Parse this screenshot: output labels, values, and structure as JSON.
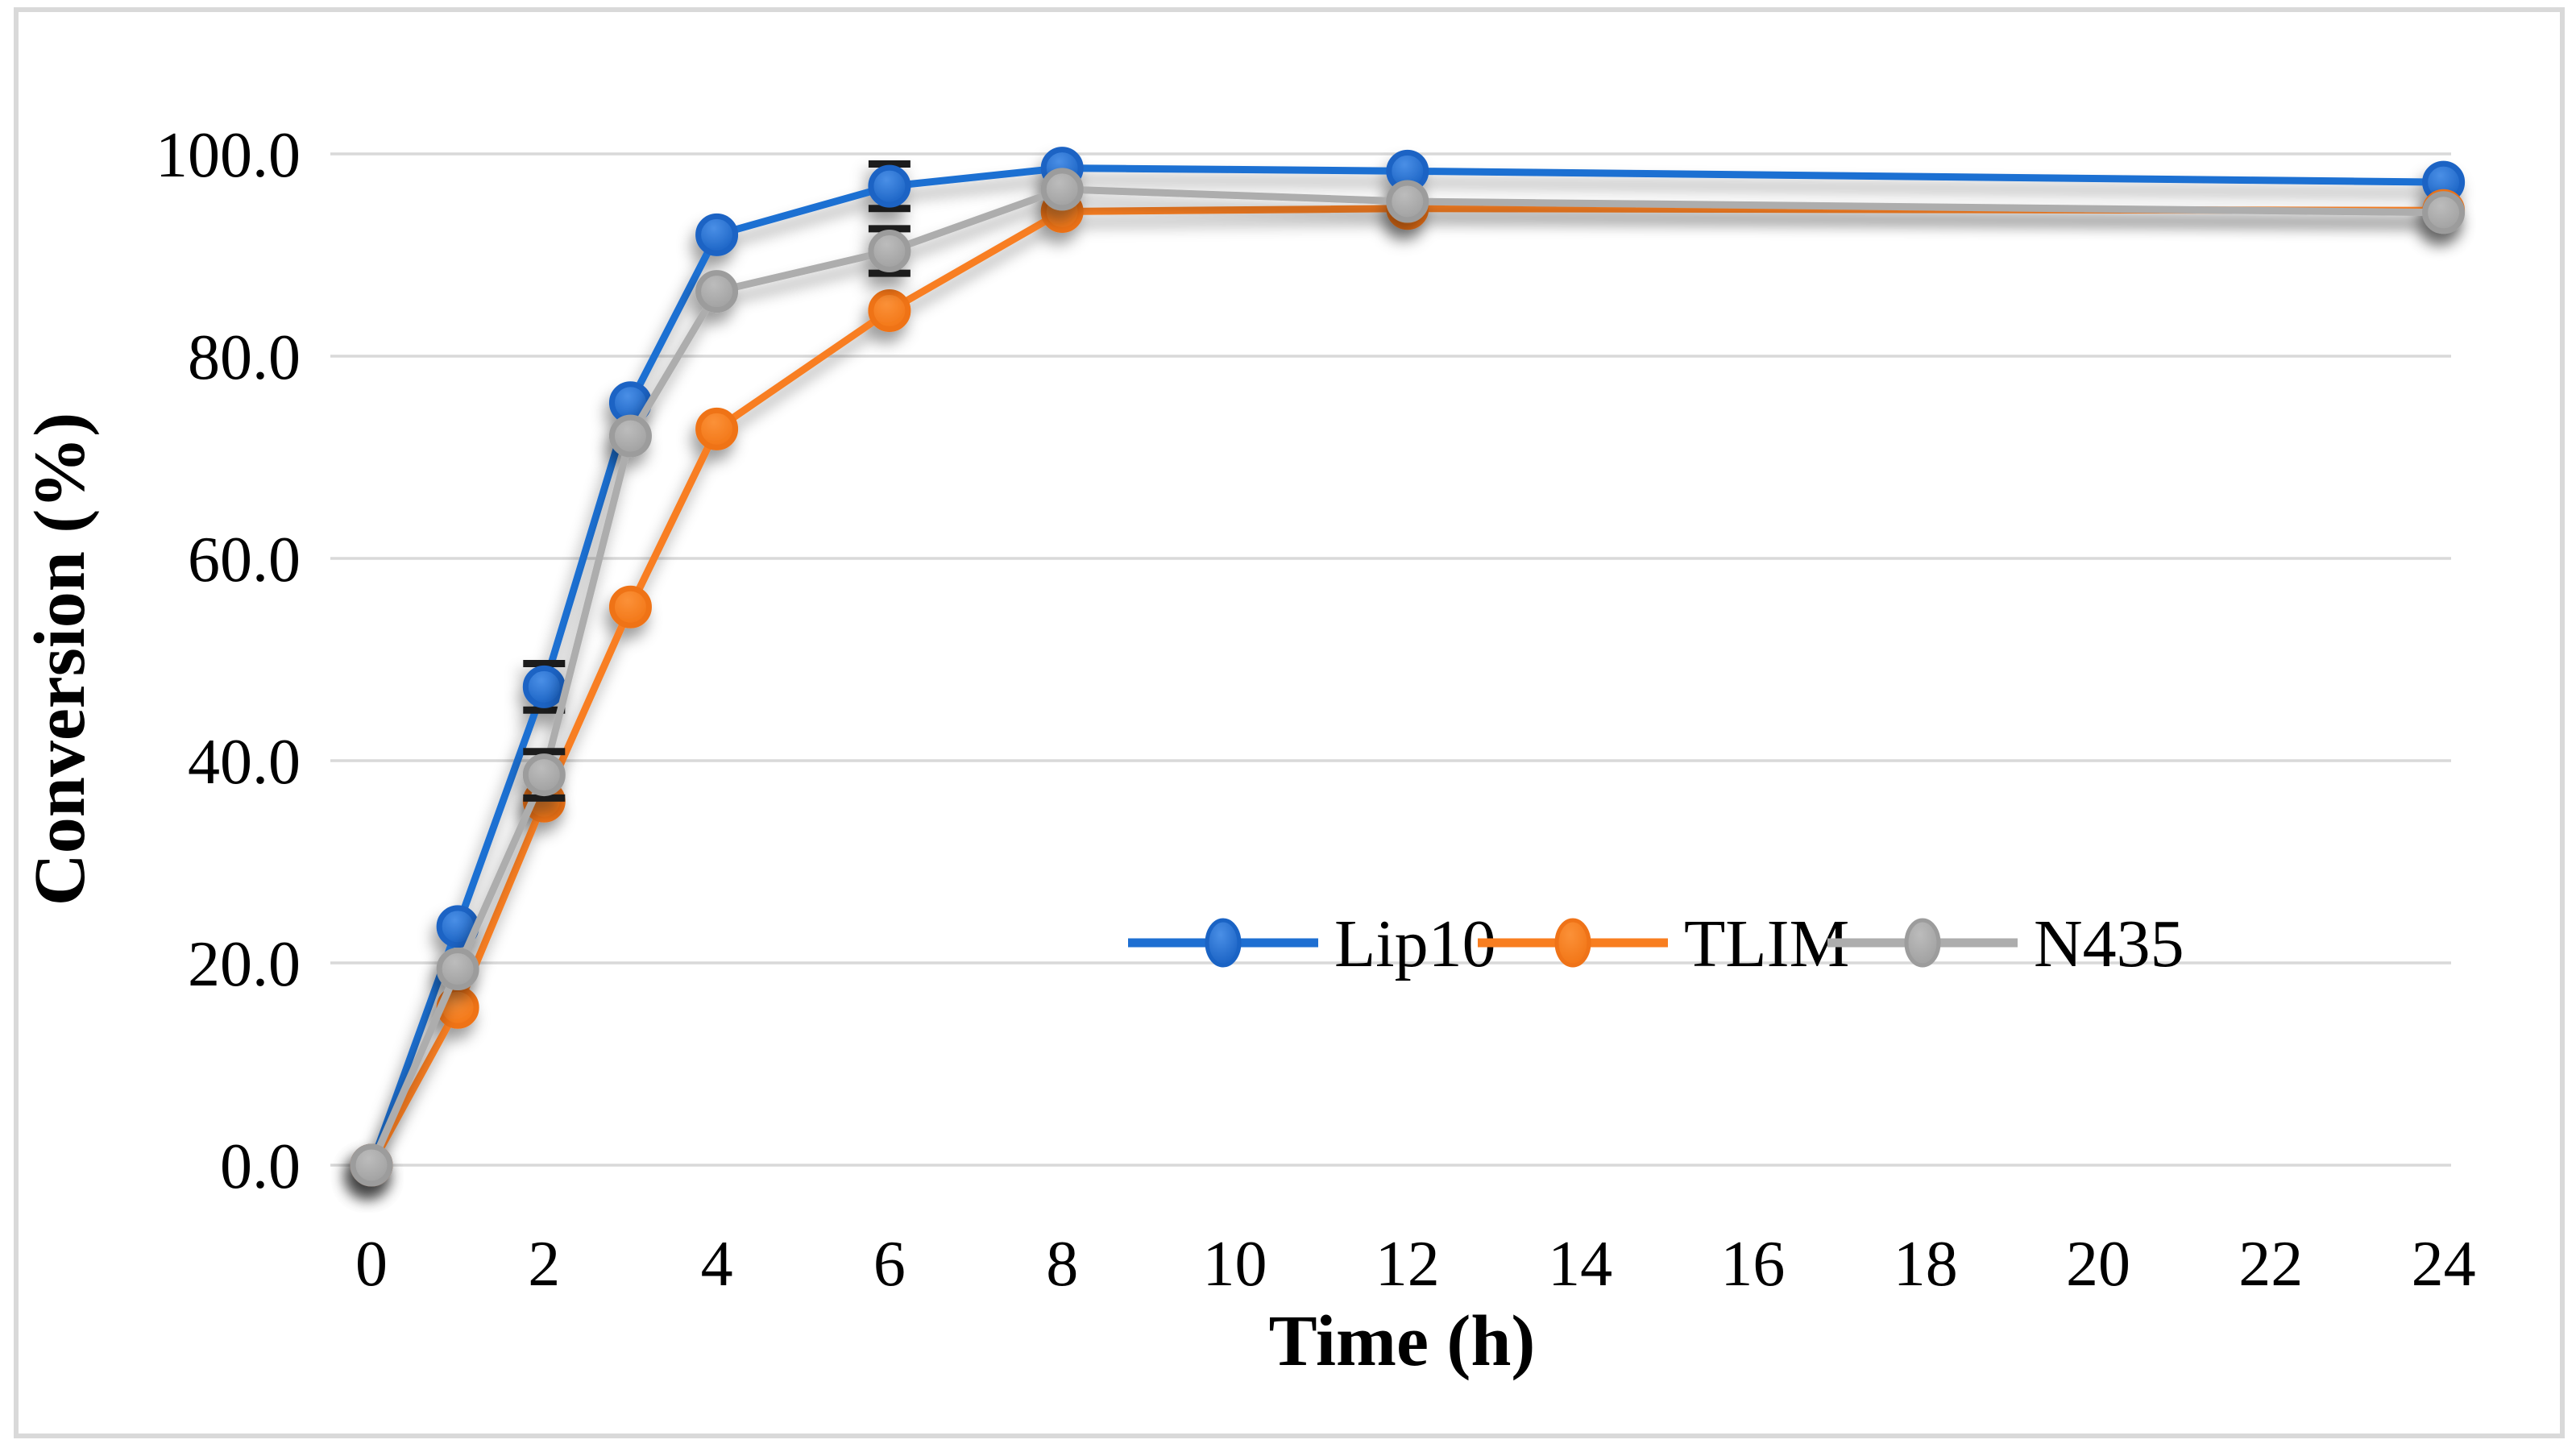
{
  "figure": {
    "background": "#ffffff",
    "border_color": "#d9d9d9",
    "gridline_color": "#d9d9d9",
    "text_color": "#000000",
    "error_bar_color": "#1f1f1f"
  },
  "chart_data": {
    "type": "line",
    "title": "",
    "xlabel": "Time (h)",
    "ylabel": "Conversion (%)",
    "x": [
      0,
      1,
      2,
      3,
      4,
      6,
      8,
      12,
      24
    ],
    "series": [
      {
        "name": "Lip10",
        "line_color": "#1e6fd2",
        "marker_fill_light": "#4a8fe6",
        "marker_fill_dark": "#0f58bc",
        "marker_rim": "#1a63c4",
        "values": [
          0.0,
          23.6,
          47.3,
          75.4,
          92.0,
          96.8,
          98.6,
          98.3,
          97.2
        ],
        "error_bars": [
          {
            "x": 2,
            "plus_minus": 2.3
          },
          {
            "x": 6,
            "plus_minus": 2.2
          }
        ]
      },
      {
        "name": "TLIM",
        "line_color": "#f87e20",
        "marker_fill_light": "#fb9138",
        "marker_fill_dark": "#f06f0e",
        "marker_rim": "#ef7318",
        "values": [
          0.0,
          15.6,
          36.0,
          55.2,
          72.8,
          84.5,
          94.3,
          94.6,
          94.4
        ],
        "error_bars": []
      },
      {
        "name": "N435",
        "line_color": "#adadad",
        "marker_fill_light": "#bcbcbc",
        "marker_fill_dark": "#9a9a9a",
        "marker_rim": "#9c9c9c",
        "values": [
          0.0,
          19.4,
          38.6,
          72.1,
          86.4,
          90.4,
          96.5,
          95.3,
          94.2
        ],
        "error_bars": [
          {
            "x": 2,
            "plus_minus": 2.3
          },
          {
            "x": 6,
            "plus_minus": 2.2
          }
        ]
      }
    ],
    "xticks": [
      "0",
      "2",
      "4",
      "6",
      "8",
      "10",
      "12",
      "14",
      "16",
      "18",
      "20",
      "22",
      "24"
    ],
    "yticks": [
      "0.0",
      "20.0",
      "40.0",
      "60.0",
      "80.0",
      "100.0"
    ],
    "xlim": [
      0,
      24
    ],
    "ylim": [
      0,
      100
    ],
    "grid": "horizontal",
    "legend_position": "inside-center-right",
    "legend": [
      "Lip10",
      "TLIM",
      "N435"
    ]
  }
}
